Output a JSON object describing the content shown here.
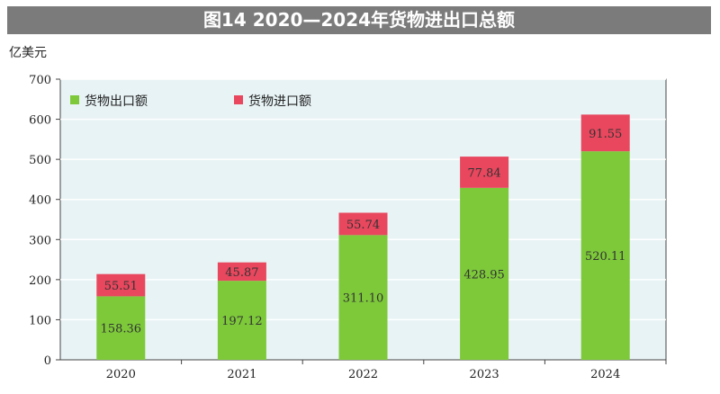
{
  "chart_data": {
    "type": "bar",
    "stacked": true,
    "title": "图14  2020—2024年货物进出口总额",
    "ylabel": "亿美元",
    "categories": [
      "2020",
      "2021",
      "2022",
      "2023",
      "2024"
    ],
    "ylim": [
      0,
      700
    ],
    "yticks": [
      0,
      100,
      200,
      300,
      400,
      500,
      600,
      700
    ],
    "grid": true,
    "legend_position": "top-left",
    "series": [
      {
        "name": "货物出口额",
        "color": "#7dc93a",
        "values": [
          158.36,
          197.12,
          311.1,
          428.95,
          520.11
        ],
        "labels": [
          "158.36",
          "197.12",
          "311.10",
          "428.95",
          "520.11"
        ]
      },
      {
        "name": "货物进口额",
        "color": "#e8475e",
        "values": [
          55.51,
          45.87,
          55.74,
          77.84,
          91.55
        ],
        "labels": [
          "55.51",
          "45.87",
          "55.74",
          "77.84",
          "91.55"
        ]
      }
    ]
  }
}
